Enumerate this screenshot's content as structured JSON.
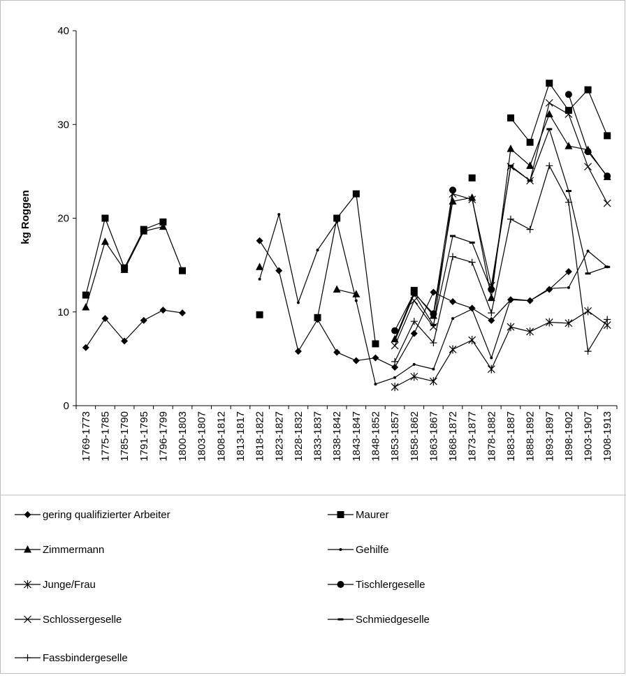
{
  "chart_data": {
    "type": "line",
    "title": "",
    "xlabel": "",
    "ylabel": "kg Roggen",
    "ylim": [
      0,
      40
    ],
    "yticks": [
      0,
      10,
      20,
      30,
      40
    ],
    "grid": false,
    "legend_position": "bottom",
    "categories": [
      "1769-1773",
      "1775-1785",
      "1785-1790",
      "1791-1795",
      "1796-1799",
      "1800-1803",
      "1803-1807",
      "1808-1812",
      "1813-1817",
      "1818-1822",
      "1823-1827",
      "1828-1832",
      "1833-1837",
      "1838-1842",
      "1843-1847",
      "1848-1852",
      "1853-1857",
      "1858-1862",
      "1863-1867",
      "1868-1872",
      "1873-1877",
      "1878-1882",
      "1883-1887",
      "1888-1892",
      "1893-1897",
      "1898-1902",
      "1903-1907",
      "1908-1913"
    ],
    "series": [
      {
        "name": "gering qualifizierter Arbeiter",
        "marker": "diamond",
        "values": [
          6.2,
          9.3,
          6.9,
          9.1,
          10.2,
          9.9,
          null,
          null,
          null,
          17.6,
          14.4,
          5.8,
          9.2,
          5.7,
          4.8,
          5.1,
          4.1,
          7.7,
          12.1,
          11.1,
          10.4,
          9.1,
          11.3,
          11.2,
          12.4,
          14.3,
          null,
          null
        ]
      },
      {
        "name": "Maurer",
        "marker": "square",
        "values": [
          11.8,
          20.0,
          14.7,
          18.8,
          19.6,
          14.4,
          null,
          null,
          null,
          9.7,
          null,
          null,
          9.4,
          20.0,
          22.6,
          6.6,
          null,
          12.3,
          null,
          null,
          24.3,
          null,
          30.7,
          28.1,
          34.4,
          31.5,
          33.7,
          28.8
        ]
      },
      {
        "name": "Zimmermann",
        "marker": "triangle",
        "values": [
          10.5,
          17.5,
          14.5,
          18.6,
          19.1,
          null,
          null,
          null,
          null,
          14.8,
          null,
          null,
          null,
          12.4,
          11.9,
          null,
          7.1,
          12.1,
          9.6,
          21.8,
          22.2,
          11.5,
          27.4,
          25.6,
          31.1,
          27.7,
          27.3,
          24.4
        ]
      },
      {
        "name": "Gehilfe",
        "marker": "dot",
        "values": [
          null,
          null,
          null,
          null,
          null,
          null,
          null,
          null,
          null,
          13.5,
          20.4,
          11.0,
          16.6,
          19.6,
          11.2,
          2.3,
          3.0,
          4.4,
          3.9,
          9.3,
          10.3,
          5.1,
          11.4,
          11.2,
          12.5,
          12.6,
          16.5,
          14.8
        ]
      },
      {
        "name": "Junge/Frau",
        "marker": "star",
        "values": [
          null,
          null,
          null,
          null,
          null,
          null,
          null,
          null,
          null,
          null,
          null,
          null,
          null,
          null,
          null,
          null,
          2.0,
          3.1,
          2.6,
          6.0,
          7.0,
          3.9,
          8.4,
          7.9,
          8.9,
          8.8,
          10.1,
          8.6
        ]
      },
      {
        "name": "Tischlergeselle",
        "marker": "circle",
        "values": [
          null,
          null,
          null,
          null,
          null,
          null,
          null,
          null,
          null,
          null,
          null,
          null,
          null,
          null,
          null,
          null,
          8.0,
          12.0,
          9.8,
          23.0,
          null,
          12.4,
          null,
          null,
          null,
          33.2,
          27.1,
          24.5
        ]
      },
      {
        "name": "Schlossergeselle",
        "marker": "x",
        "values": [
          null,
          null,
          null,
          null,
          null,
          null,
          null,
          null,
          null,
          null,
          null,
          null,
          null,
          null,
          null,
          null,
          6.4,
          11.2,
          8.4,
          22.6,
          22.0,
          12.8,
          25.5,
          24.0,
          32.3,
          31.1,
          25.5,
          21.6
        ]
      },
      {
        "name": "Schmiedgeselle",
        "marker": "dash",
        "values": [
          null,
          null,
          null,
          null,
          null,
          null,
          null,
          null,
          null,
          null,
          null,
          null,
          null,
          null,
          null,
          null,
          6.9,
          11.9,
          8.6,
          18.1,
          17.4,
          12.3,
          25.6,
          24.0,
          29.5,
          22.9,
          14.1,
          14.8
        ]
      },
      {
        "name": "Fassbindergeselle",
        "marker": "plus",
        "values": [
          null,
          null,
          null,
          null,
          null,
          null,
          null,
          null,
          null,
          null,
          null,
          null,
          null,
          null,
          null,
          null,
          4.7,
          9.0,
          6.7,
          15.9,
          15.3,
          9.9,
          19.9,
          18.8,
          25.6,
          21.7,
          5.8,
          9.2
        ]
      }
    ]
  }
}
